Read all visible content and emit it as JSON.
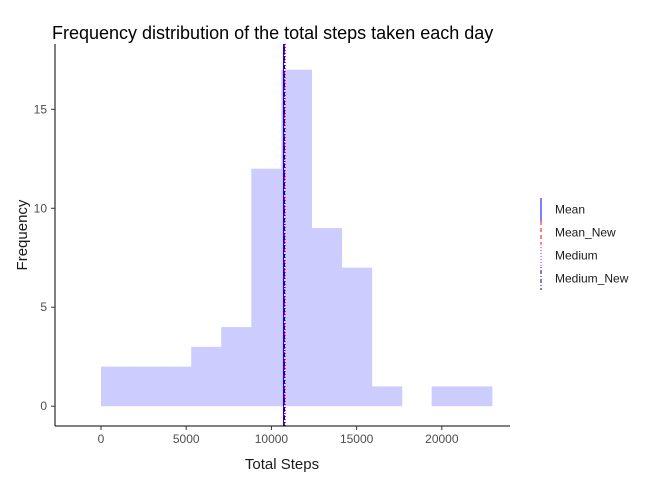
{
  "chart_data": {
    "type": "bar",
    "title": "Frequency distribution of the total steps taken each day",
    "xlabel": "Total Steps",
    "ylabel": "Frequency",
    "xlim": [
      -2700,
      24000
    ],
    "ylim": [
      -1,
      18.3
    ],
    "x_ticks": [
      0,
      5000,
      10000,
      15000,
      20000
    ],
    "x_tick_labels": [
      "0",
      "5000",
      "10000",
      "15000",
      "20000"
    ],
    "y_ticks": [
      0,
      5,
      10,
      15
    ],
    "y_tick_labels": [
      "0",
      "5",
      "10",
      "15"
    ],
    "bins": [
      {
        "start": 0,
        "end": 1764,
        "count": 2
      },
      {
        "start": 1764,
        "end": 3528,
        "count": 2
      },
      {
        "start": 3528,
        "end": 5292,
        "count": 2
      },
      {
        "start": 5292,
        "end": 7056,
        "count": 3
      },
      {
        "start": 7056,
        "end": 8820,
        "count": 4
      },
      {
        "start": 8820,
        "end": 10584,
        "count": 12
      },
      {
        "start": 10584,
        "end": 12348,
        "count": 17
      },
      {
        "start": 12348,
        "end": 14112,
        "count": 9
      },
      {
        "start": 14112,
        "end": 15876,
        "count": 7
      },
      {
        "start": 15876,
        "end": 17640,
        "count": 1
      },
      {
        "start": 17640,
        "end": 19404,
        "count": 0
      },
      {
        "start": 19404,
        "end": 21168,
        "count": 1
      },
      {
        "start": 21168,
        "end": 22932,
        "count": 1
      }
    ],
    "bar_color": "#ccccff",
    "vlines": [
      {
        "name": "Mean",
        "x": 10766,
        "color": "#0000ff",
        "linetype": "solid"
      },
      {
        "name": "Mean_New",
        "x": 10766,
        "color": "#ff0000",
        "linetype": "dashed"
      },
      {
        "name": "Medium",
        "x": 10765,
        "color": "#ff00ff",
        "linetype": "dotted"
      },
      {
        "name": "Medium_New",
        "x": 10766,
        "color": "#00008b",
        "linetype": "dotdash"
      }
    ],
    "grid": false,
    "legend_position": "right"
  }
}
